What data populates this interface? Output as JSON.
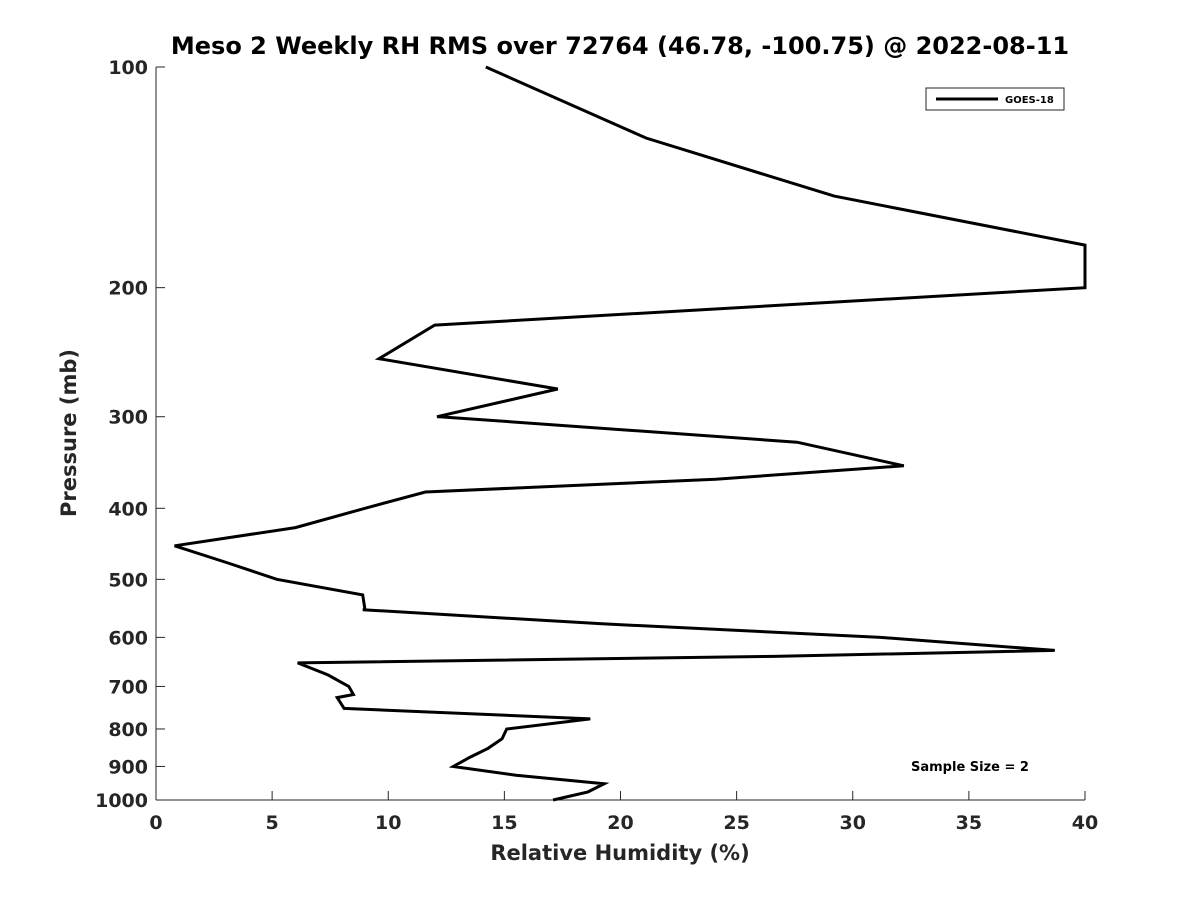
{
  "chart_data": {
    "type": "line",
    "title": "Meso 2 Weekly RH RMS over 72764 (46.78, -100.75) @ 2022-08-11",
    "xlabel": "Relative Humidity (%)",
    "ylabel": "Pressure (mb)",
    "xlim": [
      0,
      40
    ],
    "ylim": [
      100,
      1000
    ],
    "yscale": "log",
    "y_reversed": true,
    "x_ticks": [
      0,
      5,
      10,
      15,
      20,
      25,
      30,
      35,
      40
    ],
    "x_tick_labels": [
      "0",
      "5",
      "10",
      "15",
      "20",
      "25",
      "30",
      "35",
      "40"
    ],
    "y_ticks": [
      100,
      200,
      300,
      400,
      500,
      600,
      700,
      800,
      900,
      1000
    ],
    "y_tick_labels": [
      "100",
      "200",
      "300",
      "400",
      "500",
      "600",
      "700",
      "800",
      "900",
      "1000"
    ],
    "legend": {
      "location": "top-right",
      "entries": [
        "GOES-18"
      ]
    },
    "annotation": "Sample Size = 2",
    "series": [
      {
        "name": "GOES-18",
        "color": "#000000",
        "points": [
          [
            14.2,
            100
          ],
          [
            21.1,
            125
          ],
          [
            29.2,
            150
          ],
          [
            40.0,
            175
          ],
          [
            40.0,
            200
          ],
          [
            12.0,
            225
          ],
          [
            9.6,
            250
          ],
          [
            17.3,
            275
          ],
          [
            12.1,
            300
          ],
          [
            12.2,
            300
          ],
          [
            27.6,
            325
          ],
          [
            32.2,
            350
          ],
          [
            24.1,
            365
          ],
          [
            11.6,
            380
          ],
          [
            9.0,
            400
          ],
          [
            6.0,
            425
          ],
          [
            0.8,
            450
          ],
          [
            3.1,
            475
          ],
          [
            5.2,
            500
          ],
          [
            8.9,
            525
          ],
          [
            9.0,
            550
          ],
          [
            8.9,
            550
          ],
          [
            19.2,
            575
          ],
          [
            31.2,
            600
          ],
          [
            38.7,
            625
          ],
          [
            26.6,
            637
          ],
          [
            6.1,
            650
          ],
          [
            7.4,
            675
          ],
          [
            8.3,
            700
          ],
          [
            8.5,
            718
          ],
          [
            7.8,
            725
          ],
          [
            8.1,
            750
          ],
          [
            18.7,
            775
          ],
          [
            15.1,
            800
          ],
          [
            14.9,
            825
          ],
          [
            14.3,
            850
          ],
          [
            13.5,
            875
          ],
          [
            12.8,
            900
          ],
          [
            15.5,
            925
          ],
          [
            19.3,
            950
          ],
          [
            18.6,
            975
          ],
          [
            17.1,
            1000
          ]
        ]
      }
    ]
  }
}
